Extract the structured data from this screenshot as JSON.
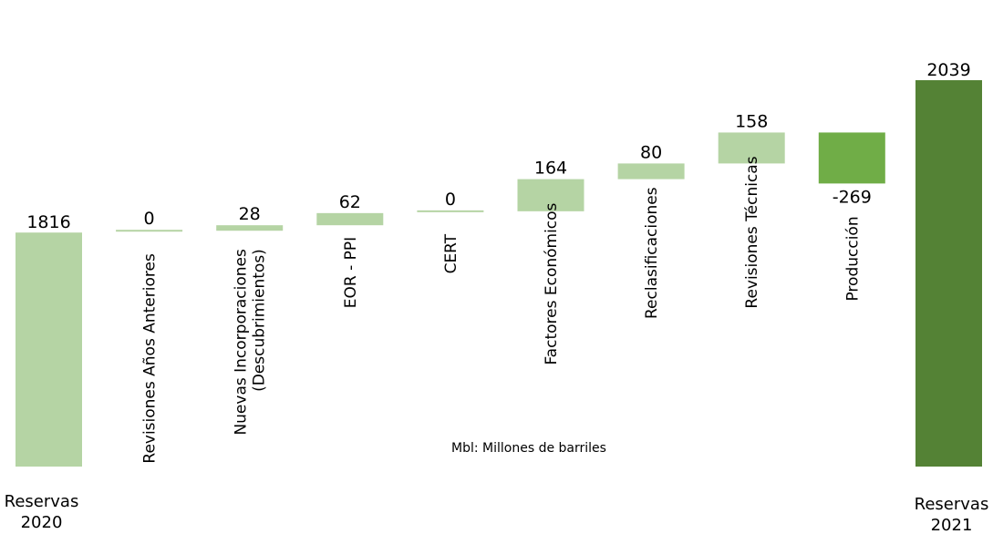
{
  "chart_data": {
    "type": "bar",
    "subtype": "waterfall",
    "start": {
      "label": [
        "Reservas",
        "2020"
      ],
      "value": 1816
    },
    "end": {
      "label": [
        "Reservas",
        "2021"
      ],
      "value": 2039
    },
    "steps": [
      {
        "label": [
          "Revisiones Años Anteriores"
        ],
        "value": 0,
        "value_label": "0"
      },
      {
        "label": [
          "Nuevas Incorporaciones",
          "(Descubrimientos)"
        ],
        "value": 28,
        "value_label": "28"
      },
      {
        "label": [
          "EOR - PPI"
        ],
        "value": 62,
        "value_label": "62"
      },
      {
        "label": [
          "CERT"
        ],
        "value": 0,
        "value_label": "0"
      },
      {
        "label": [
          "Factores Económicos"
        ],
        "value": 164,
        "value_label": "164"
      },
      {
        "label": [
          "Reclasificaciones"
        ],
        "value": 80,
        "value_label": "80"
      },
      {
        "label": [
          "Revisiones Técnicas"
        ],
        "value": 158,
        "value_label": "158"
      },
      {
        "label": [
          "Producción"
        ],
        "value": -269,
        "value_label": "-269"
      }
    ],
    "annotation": "Mbl: Millones de barriles",
    "colors": {
      "start": "#b5d4a4",
      "increase": "#b5d4a4",
      "decrease": "#70ad47",
      "end": "#548235"
    },
    "grid": false,
    "legend": "none"
  }
}
